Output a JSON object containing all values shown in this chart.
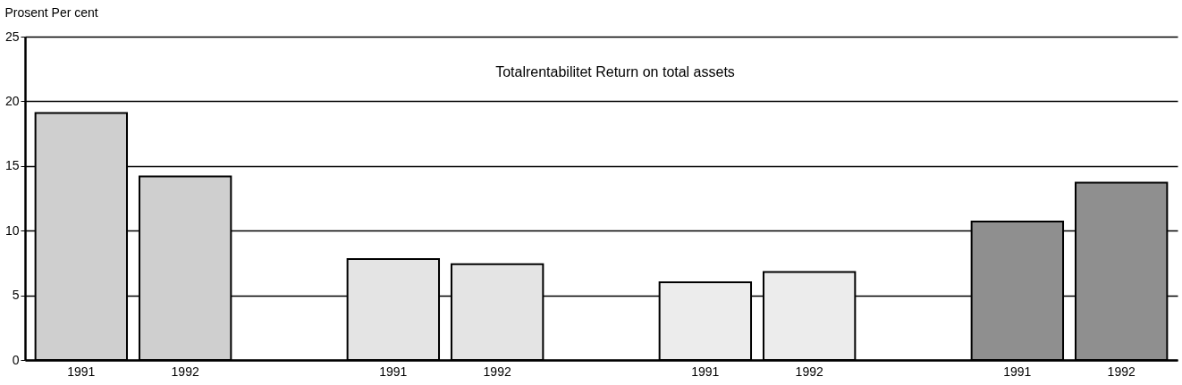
{
  "chart_data": {
    "type": "bar",
    "title": "Totalrentabilitet  Return on total assets",
    "ylabel": "Prosent Per cent",
    "categories": [
      "1991",
      "1992",
      null,
      "1991",
      "1992",
      null,
      "1991",
      "1992",
      null,
      "1991",
      "1992"
    ],
    "values": [
      19.1,
      14.2,
      null,
      7.8,
      7.4,
      null,
      6.0,
      6.8,
      null,
      10.7,
      13.7
    ],
    "colors": [
      "#cfcfcf",
      "#cfcfcf",
      null,
      "#e4e4e4",
      "#e4e4e4",
      null,
      "#ececec",
      "#ececec",
      null,
      "#8f8f8f",
      "#8f8f8f"
    ],
    "ylim": [
      0,
      25
    ],
    "yticks": [
      0,
      5,
      10,
      15,
      20,
      25
    ],
    "grid": "y"
  }
}
